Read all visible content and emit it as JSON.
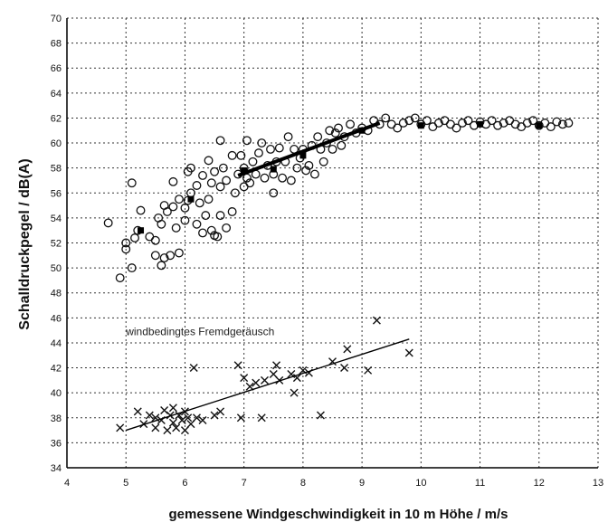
{
  "chart_data": {
    "type": "scatter",
    "title": "",
    "xlabel": "gemessene Windgeschwindigkeit in 10 m Höhe / m/s",
    "ylabel": "Schalldruckpegel / dB(A)",
    "xlim": [
      4,
      13
    ],
    "ylim": [
      34,
      70
    ],
    "xticks": [
      4,
      5,
      6,
      7,
      8,
      9,
      10,
      11,
      12,
      13
    ],
    "yticks": [
      34,
      36,
      38,
      40,
      42,
      44,
      46,
      48,
      50,
      52,
      54,
      56,
      58,
      60,
      62,
      64,
      66,
      68,
      70
    ],
    "grid": true,
    "grid_style": "dotted",
    "annotations": [
      {
        "text": "windbedingtes Fremdgeräusch",
        "x": 5.0,
        "y": 44.6
      }
    ],
    "series": [
      {
        "marker": "circle",
        "values": [
          [
            4.7,
            53.6
          ],
          [
            4.9,
            49.2
          ],
          [
            5.0,
            51.5
          ],
          [
            5.0,
            52.0
          ],
          [
            5.1,
            50.0
          ],
          [
            5.1,
            56.8
          ],
          [
            5.15,
            52.4
          ],
          [
            5.2,
            53.0
          ],
          [
            5.25,
            54.6
          ],
          [
            5.4,
            52.5
          ],
          [
            5.5,
            52.2
          ],
          [
            5.5,
            51.0
          ],
          [
            5.55,
            54.0
          ],
          [
            5.6,
            53.5
          ],
          [
            5.6,
            50.2
          ],
          [
            5.65,
            55.0
          ],
          [
            5.65,
            50.8
          ],
          [
            5.7,
            54.5
          ],
          [
            5.75,
            51.0
          ],
          [
            5.8,
            56.9
          ],
          [
            5.8,
            54.9
          ],
          [
            5.85,
            53.2
          ],
          [
            5.9,
            55.5
          ],
          [
            5.9,
            51.2
          ],
          [
            6.0,
            53.8
          ],
          [
            6.0,
            54.8
          ],
          [
            6.05,
            55.4
          ],
          [
            6.05,
            57.7
          ],
          [
            6.1,
            56.0
          ],
          [
            6.1,
            58.0
          ],
          [
            6.2,
            53.5
          ],
          [
            6.2,
            56.6
          ],
          [
            6.25,
            55.2
          ],
          [
            6.3,
            52.8
          ],
          [
            6.3,
            57.4
          ],
          [
            6.35,
            54.2
          ],
          [
            6.4,
            55.5
          ],
          [
            6.4,
            58.6
          ],
          [
            6.45,
            53.0
          ],
          [
            6.45,
            56.8
          ],
          [
            6.5,
            52.6
          ],
          [
            6.5,
            57.7
          ],
          [
            6.55,
            52.5
          ],
          [
            6.6,
            54.2
          ],
          [
            6.6,
            56.5
          ],
          [
            6.6,
            60.2
          ],
          [
            6.65,
            58.0
          ],
          [
            6.7,
            53.2
          ],
          [
            6.7,
            57.0
          ],
          [
            6.8,
            59.0
          ],
          [
            6.8,
            54.5
          ],
          [
            6.85,
            56.0
          ],
          [
            6.9,
            57.5
          ],
          [
            6.95,
            59.0
          ],
          [
            7.0,
            56.5
          ],
          [
            7.0,
            58.0
          ],
          [
            7.05,
            57.2
          ],
          [
            7.05,
            60.2
          ],
          [
            7.1,
            56.8
          ],
          [
            7.15,
            58.5
          ],
          [
            7.2,
            57.5
          ],
          [
            7.25,
            59.2
          ],
          [
            7.3,
            60.0
          ],
          [
            7.35,
            57.2
          ],
          [
            7.4,
            58.2
          ],
          [
            7.45,
            59.5
          ],
          [
            7.5,
            56.0
          ],
          [
            7.5,
            57.5
          ],
          [
            7.55,
            58.5
          ],
          [
            7.6,
            59.6
          ],
          [
            7.65,
            57.2
          ],
          [
            7.7,
            58.5
          ],
          [
            7.75,
            60.5
          ],
          [
            7.8,
            57.0
          ],
          [
            7.85,
            59.5
          ],
          [
            7.9,
            58.0
          ],
          [
            7.95,
            58.8
          ],
          [
            8.0,
            59.5
          ],
          [
            8.05,
            57.8
          ],
          [
            8.1,
            58.2
          ],
          [
            8.15,
            59.8
          ],
          [
            8.2,
            57.5
          ],
          [
            8.25,
            60.5
          ],
          [
            8.3,
            59.5
          ],
          [
            8.35,
            58.5
          ],
          [
            8.4,
            60.0
          ],
          [
            8.45,
            61.0
          ],
          [
            8.5,
            59.5
          ],
          [
            8.55,
            60.8
          ],
          [
            8.6,
            61.2
          ],
          [
            8.65,
            59.8
          ],
          [
            8.7,
            60.5
          ],
          [
            8.8,
            61.5
          ],
          [
            8.9,
            60.8
          ],
          [
            9.0,
            61.2
          ],
          [
            9.1,
            61.0
          ],
          [
            9.2,
            61.8
          ],
          [
            9.3,
            61.5
          ],
          [
            9.4,
            62.0
          ],
          [
            9.5,
            61.5
          ],
          [
            9.6,
            61.2
          ],
          [
            9.7,
            61.6
          ],
          [
            9.8,
            61.8
          ],
          [
            9.9,
            62.0
          ],
          [
            10.0,
            61.5
          ],
          [
            10.1,
            61.8
          ],
          [
            10.2,
            61.3
          ],
          [
            10.3,
            61.6
          ],
          [
            10.4,
            61.8
          ],
          [
            10.5,
            61.5
          ],
          [
            10.6,
            61.2
          ],
          [
            10.7,
            61.6
          ],
          [
            10.8,
            61.8
          ],
          [
            10.9,
            61.4
          ],
          [
            11.0,
            61.7
          ],
          [
            11.1,
            61.5
          ],
          [
            11.2,
            61.8
          ],
          [
            11.3,
            61.4
          ],
          [
            11.4,
            61.6
          ],
          [
            11.5,
            61.8
          ],
          [
            11.6,
            61.5
          ],
          [
            11.7,
            61.3
          ],
          [
            11.8,
            61.6
          ],
          [
            11.9,
            61.8
          ],
          [
            12.0,
            61.4
          ],
          [
            12.1,
            61.6
          ],
          [
            12.2,
            61.3
          ],
          [
            12.3,
            61.7
          ],
          [
            12.4,
            61.5
          ],
          [
            12.5,
            61.6
          ]
        ]
      },
      {
        "marker": "square",
        "values": [
          [
            5.25,
            53.0
          ],
          [
            6.1,
            55.5
          ],
          [
            7.0,
            57.8
          ],
          [
            7.5,
            57.9
          ],
          [
            8.0,
            59.0
          ],
          [
            9.0,
            61.0
          ],
          [
            10.0,
            61.4
          ],
          [
            11.0,
            61.5
          ],
          [
            12.0,
            61.4
          ]
        ]
      },
      {
        "marker": "cross",
        "values": [
          [
            4.9,
            37.2
          ],
          [
            5.2,
            38.5
          ],
          [
            5.3,
            37.5
          ],
          [
            5.4,
            38.2
          ],
          [
            5.5,
            38.0
          ],
          [
            5.5,
            37.2
          ],
          [
            5.6,
            37.8
          ],
          [
            5.65,
            38.6
          ],
          [
            5.7,
            37.0
          ],
          [
            5.75,
            38.2
          ],
          [
            5.8,
            37.6
          ],
          [
            5.8,
            38.8
          ],
          [
            5.85,
            37.2
          ],
          [
            5.9,
            38.2
          ],
          [
            5.95,
            37.8
          ],
          [
            6.0,
            38.5
          ],
          [
            6.0,
            37.0
          ],
          [
            6.05,
            38.0
          ],
          [
            6.1,
            37.5
          ],
          [
            6.15,
            42.0
          ],
          [
            6.2,
            38.0
          ],
          [
            6.3,
            37.8
          ],
          [
            6.5,
            38.2
          ],
          [
            6.6,
            38.5
          ],
          [
            6.9,
            42.2
          ],
          [
            6.95,
            38.0
          ],
          [
            7.0,
            41.2
          ],
          [
            7.1,
            40.5
          ],
          [
            7.2,
            40.8
          ],
          [
            7.3,
            38.0
          ],
          [
            7.35,
            41.0
          ],
          [
            7.5,
            41.5
          ],
          [
            7.55,
            42.2
          ],
          [
            7.6,
            41.0
          ],
          [
            7.8,
            41.5
          ],
          [
            7.85,
            40.0
          ],
          [
            7.9,
            41.2
          ],
          [
            8.0,
            41.8
          ],
          [
            8.1,
            41.6
          ],
          [
            8.3,
            38.2
          ],
          [
            8.5,
            42.5
          ],
          [
            8.7,
            42.0
          ],
          [
            8.75,
            43.5
          ],
          [
            9.1,
            41.8
          ],
          [
            9.25,
            45.8
          ],
          [
            9.8,
            43.2
          ]
        ]
      },
      {
        "marker": "line-bold",
        "values": [
          [
            6.9,
            57.4
          ],
          [
            9.3,
            61.6
          ]
        ]
      },
      {
        "marker": "line-thin",
        "values": [
          [
            5.0,
            37.0
          ],
          [
            9.8,
            44.3
          ]
        ]
      }
    ]
  }
}
